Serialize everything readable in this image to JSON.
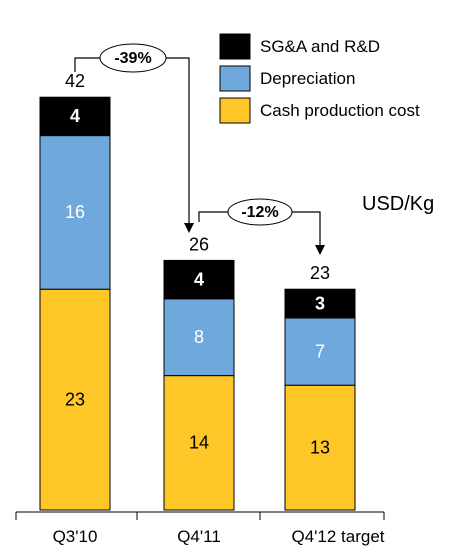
{
  "chart_data": {
    "type": "bar",
    "stacked": true,
    "categories": [
      "Q3'10",
      "Q4'11",
      "Q4'12 target"
    ],
    "series": [
      {
        "name": "Cash production cost",
        "values": [
          23,
          14,
          13
        ],
        "color": "#FFC627",
        "label_color": "#000000",
        "label_bold": false
      },
      {
        "name": "Depreciation",
        "values": [
          16,
          8,
          7
        ],
        "color": "#6FA8DC",
        "label_color": "#FFFFFF",
        "label_bold": false
      },
      {
        "name": "SG&A and R&D",
        "values": [
          4,
          4,
          3
        ],
        "color": "#000000",
        "label_color": "#FFFFFF",
        "label_bold": true
      }
    ],
    "totals": [
      42,
      26,
      23
    ],
    "unit": "USD/Kg",
    "legend_position": "top-right",
    "legend_order": [
      "SG&A and R&D",
      "Depreciation",
      "Cash production cost"
    ],
    "annotations": [
      {
        "from": 0,
        "to": 1,
        "label": "-39%"
      },
      {
        "from": 1,
        "to": 2,
        "label": "-12%"
      }
    ],
    "grid": false,
    "xlabel": "",
    "ylabel": ""
  }
}
